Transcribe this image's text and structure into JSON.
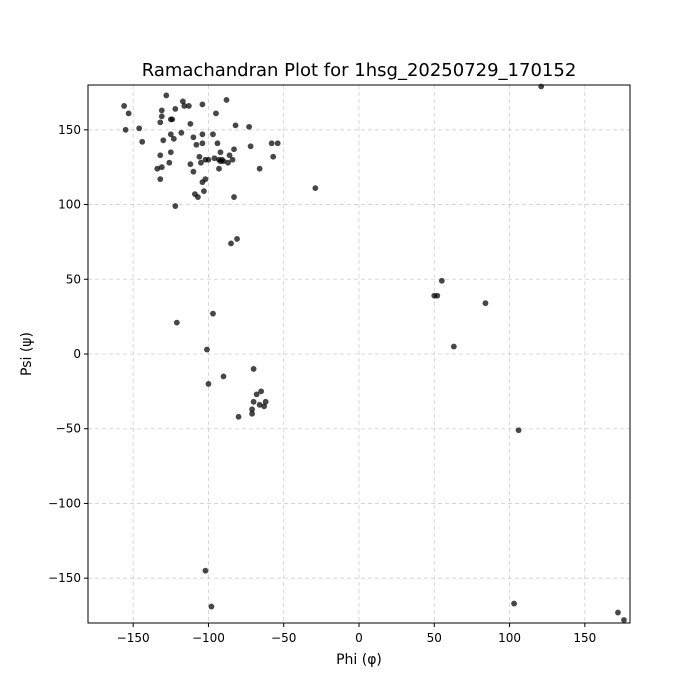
{
  "chart_data": {
    "type": "scatter",
    "title": "Ramachandran Plot for 1hsg_20250729_170152",
    "xlabel": "Phi (φ)",
    "ylabel": "Psi (ψ)",
    "xlim": [
      -180,
      180
    ],
    "ylim": [
      -180,
      180
    ],
    "xticks": [
      -150,
      -100,
      -50,
      0,
      50,
      100,
      150
    ],
    "yticks": [
      -150,
      -100,
      -50,
      0,
      50,
      100,
      150
    ],
    "xtick_labels": [
      "−150",
      "−100",
      "−50",
      "0",
      "50",
      "100",
      "150"
    ],
    "ytick_labels": [
      "−150",
      "−100",
      "−50",
      "0",
      "50",
      "100",
      "150"
    ],
    "grid": true,
    "marker_color": "#000000",
    "series": [
      {
        "points": [
          [
            -156,
            166
          ],
          [
            -155,
            150
          ],
          [
            -153,
            161
          ],
          [
            -146,
            151
          ],
          [
            -144,
            142
          ],
          [
            -134,
            124
          ],
          [
            -132,
            155
          ],
          [
            -132,
            133
          ],
          [
            -132,
            117
          ],
          [
            -131,
            163
          ],
          [
            -131,
            159
          ],
          [
            -131,
            125
          ],
          [
            -130,
            143
          ],
          [
            -128,
            173
          ],
          [
            -126,
            128
          ],
          [
            -125,
            157
          ],
          [
            -125,
            147
          ],
          [
            -125,
            135
          ],
          [
            -124,
            157
          ],
          [
            -123,
            144
          ],
          [
            -122,
            164
          ],
          [
            -122,
            99
          ],
          [
            -121,
            21
          ],
          [
            -118,
            148
          ],
          [
            -117,
            169
          ],
          [
            -116,
            166
          ],
          [
            -113,
            166
          ],
          [
            -112,
            154
          ],
          [
            -112,
            127
          ],
          [
            -110,
            145
          ],
          [
            -110,
            122
          ],
          [
            -109,
            107
          ],
          [
            -108,
            140
          ],
          [
            -107,
            105
          ],
          [
            -106,
            132
          ],
          [
            -105,
            128
          ],
          [
            -104,
            141
          ],
          [
            -104,
            147
          ],
          [
            -104,
            167
          ],
          [
            -104,
            115
          ],
          [
            -103,
            109
          ],
          [
            -102,
            130
          ],
          [
            -102,
            117
          ],
          [
            -102,
            -145
          ],
          [
            -101,
            3
          ],
          [
            -100,
            130
          ],
          [
            -100,
            -20
          ],
          [
            -98,
            -169
          ],
          [
            -97,
            147
          ],
          [
            -97,
            27
          ],
          [
            -96,
            131
          ],
          [
            -95,
            161
          ],
          [
            -94,
            141
          ],
          [
            -93,
            130
          ],
          [
            -93,
            124
          ],
          [
            -92,
            129
          ],
          [
            -92,
            135
          ],
          [
            -91,
            130
          ],
          [
            -90,
            129
          ],
          [
            -90,
            -15
          ],
          [
            -88,
            170
          ],
          [
            -87,
            128
          ],
          [
            -86,
            133
          ],
          [
            -85,
            74
          ],
          [
            -84,
            130
          ],
          [
            -83,
            105
          ],
          [
            -83,
            137
          ],
          [
            -82,
            153
          ],
          [
            -81,
            77
          ],
          [
            -80,
            -42
          ],
          [
            -73,
            152
          ],
          [
            -72,
            139
          ],
          [
            -71,
            -40
          ],
          [
            -71,
            -37
          ],
          [
            -70,
            -32
          ],
          [
            -70,
            -10
          ],
          [
            -68,
            -27
          ],
          [
            -66,
            124
          ],
          [
            -66,
            -34
          ],
          [
            -65,
            -25
          ],
          [
            -63,
            -35
          ],
          [
            -62,
            -32
          ],
          [
            -58,
            141
          ],
          [
            -57,
            132
          ],
          [
            -54,
            141
          ],
          [
            -29,
            111
          ],
          [
            50,
            39
          ],
          [
            52,
            39
          ],
          [
            55,
            49
          ],
          [
            63,
            5
          ],
          [
            84,
            34
          ],
          [
            103,
            -167
          ],
          [
            106,
            -51
          ],
          [
            121,
            179
          ],
          [
            172,
            -173
          ],
          [
            176,
            -178
          ]
        ]
      }
    ]
  }
}
